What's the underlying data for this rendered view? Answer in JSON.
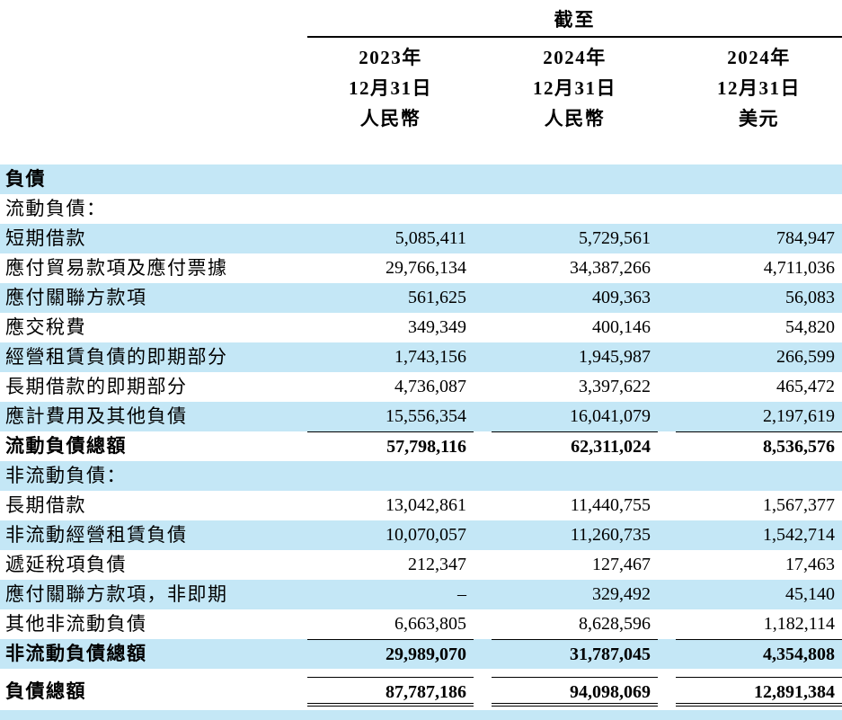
{
  "colors": {
    "stripe_blue": "#c4e7f6",
    "text": "#000000",
    "rule": "#000000"
  },
  "table": {
    "as_of_label": "截至",
    "columns": [
      {
        "year": "2023年",
        "date": "12月31日",
        "currency": "人民幣"
      },
      {
        "year": "2024年",
        "date": "12月31日",
        "currency": "人民幣"
      },
      {
        "year": "2024年",
        "date": "12月31日",
        "currency": "美元"
      }
    ],
    "rows": [
      {
        "label": "負債",
        "values": [
          "",
          "",
          ""
        ],
        "bold": true,
        "stripe": true
      },
      {
        "label": "流動負債：",
        "values": [
          "",
          "",
          ""
        ],
        "bold": false,
        "stripe": false
      },
      {
        "label": "短期借款",
        "values": [
          "5,085,411",
          "5,729,561",
          "784,947"
        ],
        "bold": false,
        "stripe": true
      },
      {
        "label": "應付貿易款項及應付票據",
        "values": [
          "29,766,134",
          "34,387,266",
          "4,711,036"
        ],
        "bold": false,
        "stripe": false
      },
      {
        "label": "應付關聯方款項",
        "values": [
          "561,625",
          "409,363",
          "56,083"
        ],
        "bold": false,
        "stripe": true
      },
      {
        "label": "應交稅費",
        "values": [
          "349,349",
          "400,146",
          "54,820"
        ],
        "bold": false,
        "stripe": false
      },
      {
        "label": "經營租賃負債的即期部分",
        "values": [
          "1,743,156",
          "1,945,987",
          "266,599"
        ],
        "bold": false,
        "stripe": true
      },
      {
        "label": "長期借款的即期部分",
        "values": [
          "4,736,087",
          "3,397,622",
          "465,472"
        ],
        "bold": false,
        "stripe": false
      },
      {
        "label": "應計費用及其他負債",
        "values": [
          "15,556,354",
          "16,041,079",
          "2,197,619"
        ],
        "bold": false,
        "stripe": true
      },
      {
        "label": "流動負債總額",
        "values": [
          "57,798,116",
          "62,311,024",
          "8,536,576"
        ],
        "bold": true,
        "stripe": false,
        "rule_above": true
      },
      {
        "label": "非流動負債：",
        "values": [
          "",
          "",
          ""
        ],
        "bold": false,
        "stripe": true
      },
      {
        "label": "長期借款",
        "values": [
          "13,042,861",
          "11,440,755",
          "1,567,377"
        ],
        "bold": false,
        "stripe": false
      },
      {
        "label": "非流動經營租賃負債",
        "values": [
          "10,070,057",
          "11,260,735",
          "1,542,714"
        ],
        "bold": false,
        "stripe": true
      },
      {
        "label": "遞延稅項負債",
        "values": [
          "212,347",
          "127,467",
          "17,463"
        ],
        "bold": false,
        "stripe": false
      },
      {
        "label": "應付關聯方款項，非即期",
        "values": [
          "–",
          "329,492",
          "45,140"
        ],
        "bold": false,
        "stripe": true
      },
      {
        "label": "其他非流動負債",
        "values": [
          "6,663,805",
          "8,628,596",
          "1,182,114"
        ],
        "bold": false,
        "stripe": false
      },
      {
        "label": "非流動負債總額",
        "values": [
          "29,989,070",
          "31,787,045",
          "4,354,808"
        ],
        "bold": true,
        "stripe": true,
        "rule_above": true
      },
      {
        "label": "負債總額",
        "values": [
          "87,787,186",
          "94,098,069",
          "12,891,384"
        ],
        "bold": true,
        "stripe": false,
        "rule_above": true,
        "gap_above": true,
        "double_rule_below": true
      }
    ]
  }
}
